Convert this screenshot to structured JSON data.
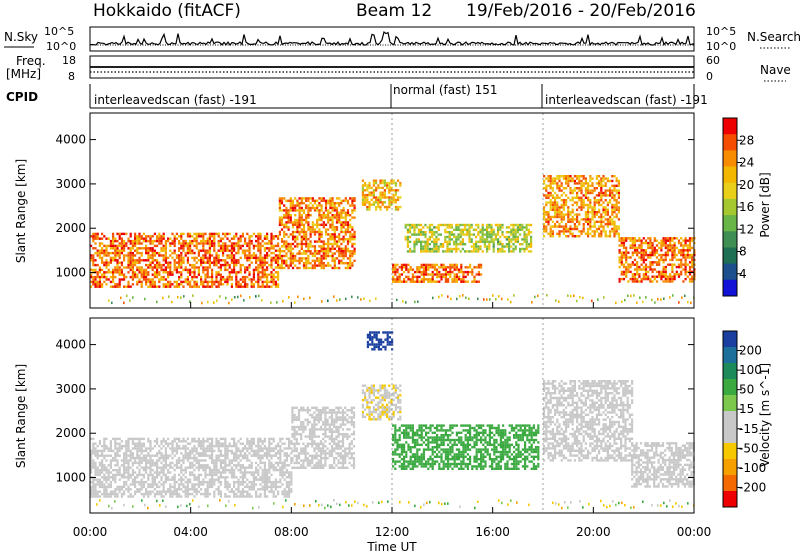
{
  "header": {
    "station": "Hokkaido (fitACF)",
    "beam": "Beam 12",
    "dates": "19/Feb/2016 - 20/Feb/2016"
  },
  "top_panels": {
    "nsky_label": "N.Sky",
    "nsky_ticks": [
      "10^5",
      "10^0"
    ],
    "nsky_right_ticks": [
      "10^5",
      "10^0"
    ],
    "nsearch_label": "N.Search",
    "freq_label": "Freq.",
    "freq_unit": "[MHz]",
    "freq_ticks": [
      "18",
      "8"
    ],
    "nave_ticks": [
      "60",
      "0"
    ],
    "nave_label": "Nave",
    "cpid_label": "CPID",
    "cpid_segments": [
      {
        "label": "interleavedscan (fast) -191",
        "start": "00:00",
        "end": "12:00"
      },
      {
        "label": "normal (fast) 151",
        "start": "12:00",
        "end": "18:00"
      },
      {
        "label": "interleavedscan (fast) -191",
        "start": "18:00",
        "end": "24:00"
      }
    ]
  },
  "x_axis": {
    "label": "Time UT",
    "ticks": [
      "00:00",
      "04:00",
      "08:00",
      "12:00",
      "16:00",
      "20:00",
      "00:00"
    ]
  },
  "y_axis": {
    "label": "Slant Range [km]",
    "ticks": [
      "1000",
      "2000",
      "3000",
      "4000"
    ]
  },
  "power_colorbar": {
    "label": "Power [dB]",
    "ticks": [
      "28",
      "24",
      "20",
      "16",
      "12",
      "8",
      "4"
    ],
    "colors": [
      "#ee0000",
      "#f54e00",
      "#f88c00",
      "#f3b700",
      "#e9cf1a",
      "#a5c830",
      "#6ab548",
      "#3f8f55",
      "#1e6f54",
      "#1d4f8c",
      "#1313d8"
    ]
  },
  "velocity_colorbar": {
    "label": "Velocity [m s^-1]",
    "ticks": [
      "200",
      "100",
      "50",
      "15",
      "-15",
      "-50",
      "-100",
      "-200"
    ],
    "colors": [
      "#1a3fa0",
      "#1b6f9a",
      "#1c8a5a",
      "#3aaa40",
      "#7cc84c",
      "#c8c8c8",
      "#c8c8c8",
      "#f5c800",
      "#f5a000",
      "#f56a00",
      "#ee0000"
    ]
  },
  "chart_data": [
    {
      "type": "heatmap",
      "title": "Power",
      "xlabel": "Time UT",
      "ylabel": "Slant Range [km]",
      "xlim": [
        0,
        24
      ],
      "ylim": [
        200,
        4600
      ],
      "colorbar": "Power [dB]",
      "regions": [
        {
          "t0": 0.0,
          "t1": 7.5,
          "r0": 700,
          "r1": 1900,
          "level": 26
        },
        {
          "t0": 7.5,
          "t1": 10.5,
          "r0": 1100,
          "r1": 2700,
          "level": 25
        },
        {
          "t0": 10.8,
          "t1": 12.3,
          "r0": 2400,
          "r1": 3100,
          "level": 22
        },
        {
          "t0": 12.0,
          "t1": 15.5,
          "r0": 800,
          "r1": 1200,
          "level": 26
        },
        {
          "t0": 12.5,
          "t1": 17.5,
          "r0": 1500,
          "r1": 2100,
          "level": 18
        },
        {
          "t0": 18.0,
          "t1": 21.0,
          "r0": 1800,
          "r1": 3200,
          "level": 24
        },
        {
          "t0": 21.0,
          "t1": 24.0,
          "r0": 800,
          "r1": 1800,
          "level": 26
        }
      ]
    },
    {
      "type": "heatmap",
      "title": "Velocity",
      "xlabel": "Time UT",
      "ylabel": "Slant Range [km]",
      "xlim": [
        0,
        24
      ],
      "ylim": [
        200,
        4600
      ],
      "colorbar": "Velocity [m s^-1]",
      "regions": [
        {
          "t0": 0.0,
          "t1": 8.0,
          "r0": 600,
          "r1": 1900,
          "velocity": 0
        },
        {
          "t0": 8.0,
          "t1": 10.5,
          "r0": 1200,
          "r1": 2600,
          "velocity": 0
        },
        {
          "t0": 10.8,
          "t1": 12.3,
          "r0": 2300,
          "r1": 3100,
          "velocity": -10
        },
        {
          "t0": 11.0,
          "t1": 12.0,
          "r0": 3900,
          "r1": 4300,
          "velocity": 180
        },
        {
          "t0": 12.0,
          "t1": 17.8,
          "r0": 1200,
          "r1": 2200,
          "velocity": 60
        },
        {
          "t0": 18.0,
          "t1": 21.5,
          "r0": 1400,
          "r1": 3200,
          "velocity": 0
        },
        {
          "t0": 21.5,
          "t1": 24.0,
          "r0": 800,
          "r1": 1800,
          "velocity": 0
        }
      ]
    }
  ]
}
